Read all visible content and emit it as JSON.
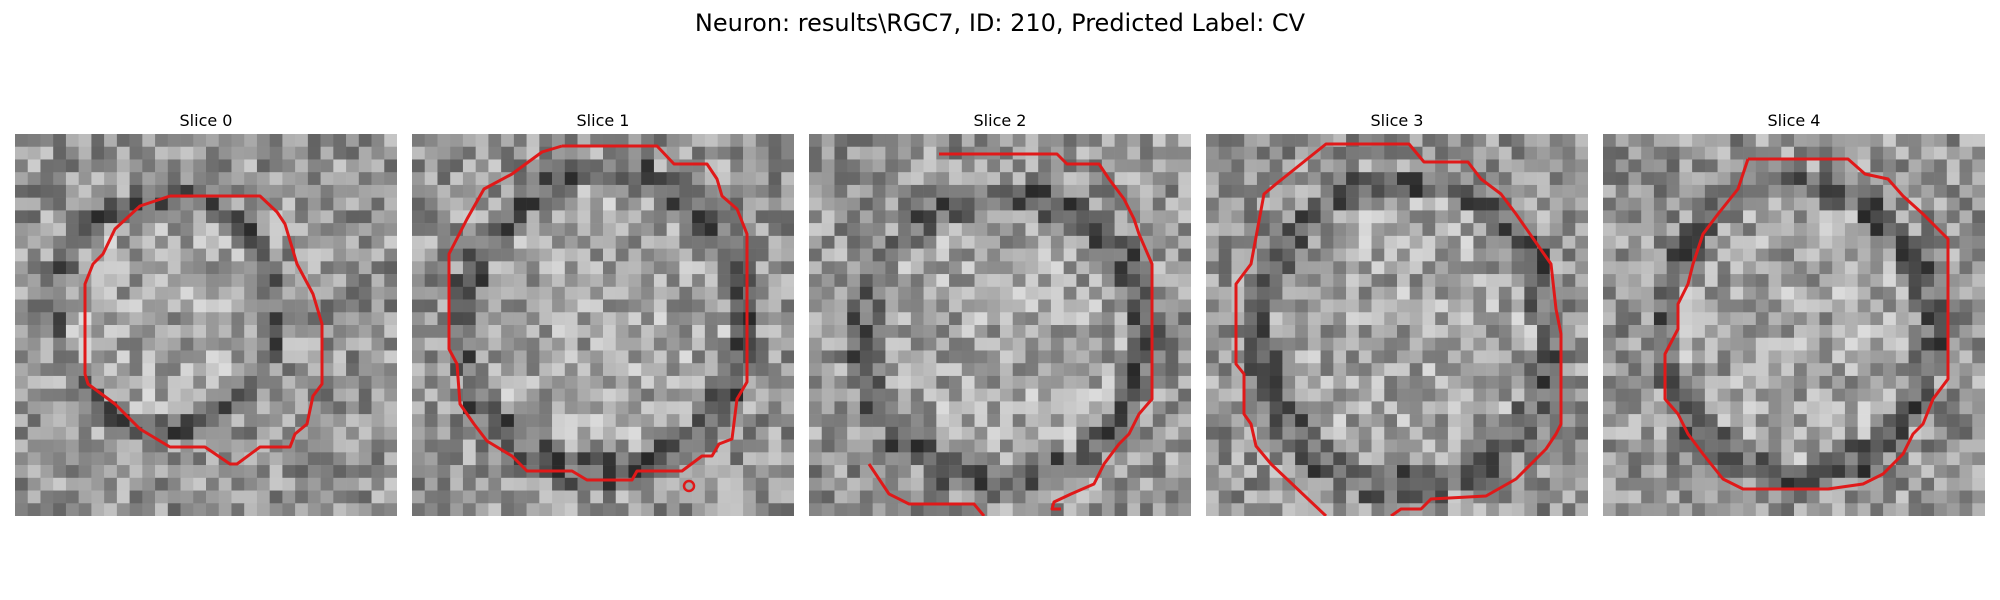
{
  "figure": {
    "title": "Neuron: results\\RGC7, ID: 210, Predicted Label: CV"
  },
  "slices": [
    {
      "title": "Slice 0"
    },
    {
      "title": "Slice 1"
    },
    {
      "title": "Slice 2"
    },
    {
      "title": "Slice 3"
    },
    {
      "title": "Slice 4"
    }
  ],
  "colors": {
    "contour": "#e01919",
    "colormap": "gray"
  }
}
